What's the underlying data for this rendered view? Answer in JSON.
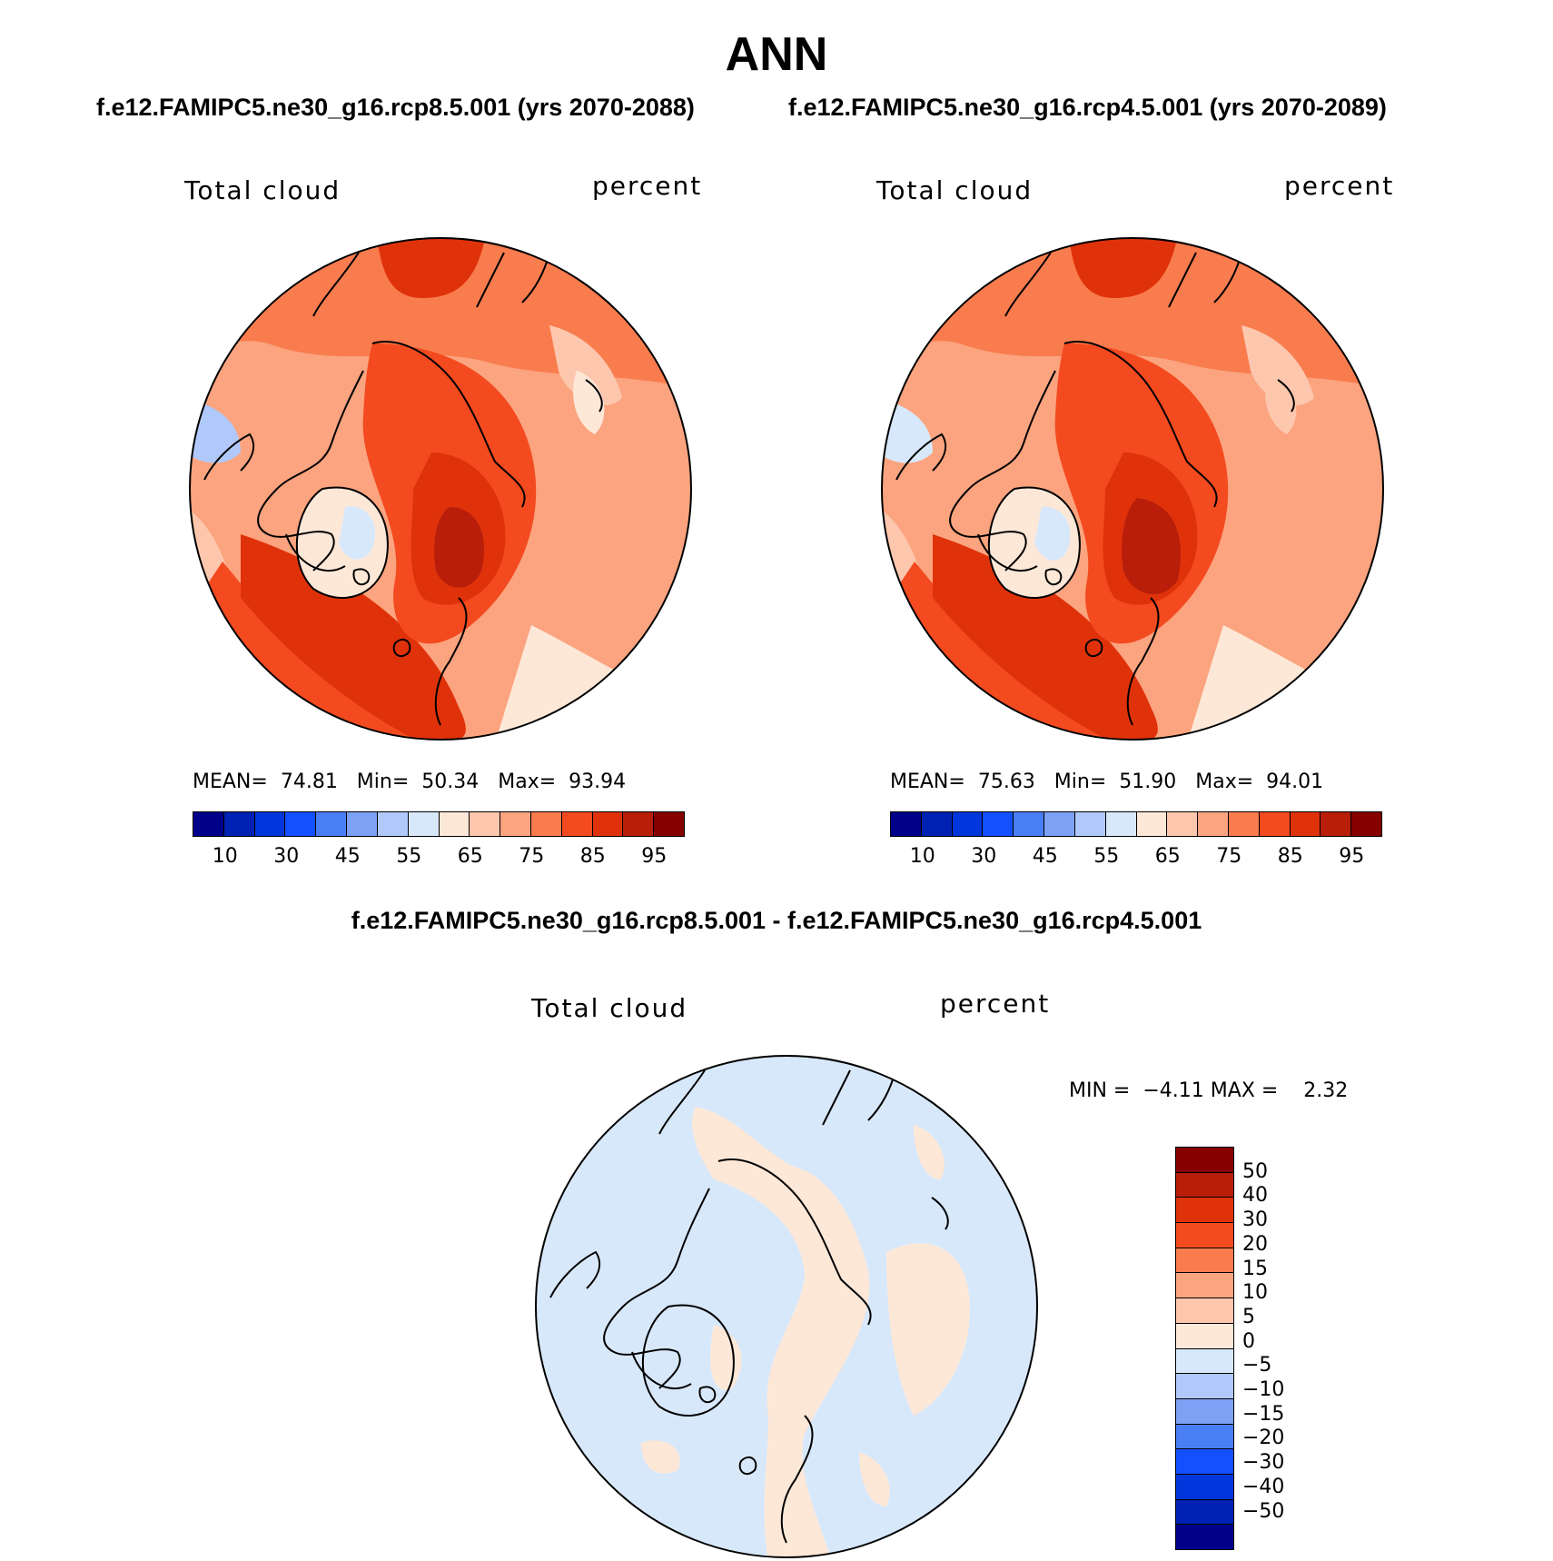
{
  "title": "ANN",
  "panels": [
    {
      "case": "f.e12.FAMIPC5.ne30_g16.rcp8.5.001 (yrs 2070-2088)",
      "variable": "Total cloud",
      "units": "percent",
      "stats": {
        "mean_label": "MEAN=",
        "mean": "74.81",
        "min_label": "Min=",
        "min": "50.34",
        "max_label": "Max=",
        "max": "93.94"
      }
    },
    {
      "case": "f.e12.FAMIPC5.ne30_g16.rcp4.5.001 (yrs 2070-2089)",
      "variable": "Total cloud",
      "units": "percent",
      "stats": {
        "mean_label": "MEAN=",
        "mean": "75.63",
        "min_label": "Min=",
        "min": "51.90",
        "max_label": "Max=",
        "max": "94.01"
      }
    }
  ],
  "abs_colorbar": {
    "colors": [
      "#00008b",
      "#0022b4",
      "#0036dc",
      "#1450ff",
      "#4a7ef7",
      "#7da1f5",
      "#b0c8fa",
      "#d8e8fb",
      "#fde8d8",
      "#fdc7ae",
      "#fba47f",
      "#f97c4e",
      "#f44a1f",
      "#e0320a",
      "#b81e0a",
      "#870000"
    ],
    "tick_labels": [
      "10",
      "30",
      "45",
      "55",
      "65",
      "75",
      "85",
      "95"
    ]
  },
  "diff": {
    "title": "f.e12.FAMIPC5.ne30_g16.rcp8.5.001 - f.e12.FAMIPC5.ne30_g16.rcp4.5.001",
    "variable": "Total cloud",
    "units": "percent",
    "stats": {
      "min_label": "MIN =",
      "min": "−4.11",
      "max_label": "MAX =",
      "max": "2.32"
    },
    "colorbar": {
      "colors": [
        "#870000",
        "#b81e0a",
        "#e0320a",
        "#f44a1f",
        "#f97c4e",
        "#fba47f",
        "#fdc7ae",
        "#fde8d8",
        "#d8e8fb",
        "#b0c8fa",
        "#7da1f5",
        "#4a7ef7",
        "#1450ff",
        "#0036dc",
        "#0022b4",
        "#00008b"
      ],
      "tick_labels": [
        "50",
        "40",
        "30",
        "20",
        "15",
        "10",
        "5",
        "0",
        "−5",
        "−10",
        "−15",
        "−20",
        "−30",
        "−40",
        "−50"
      ]
    }
  }
}
